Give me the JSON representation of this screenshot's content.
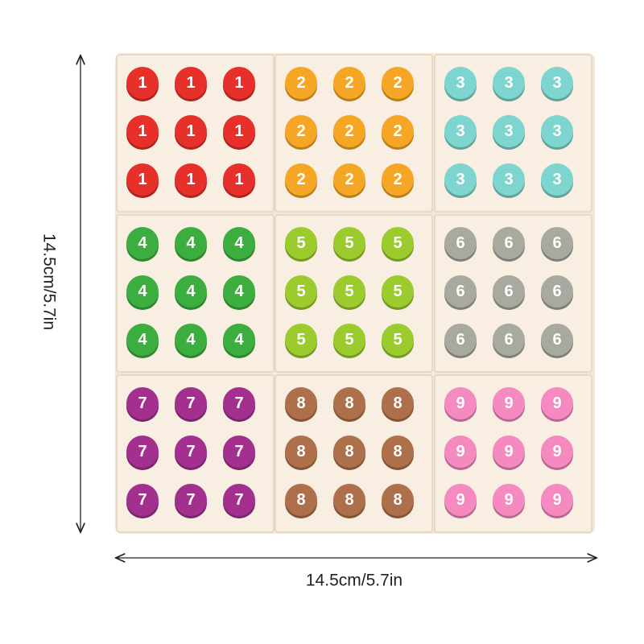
{
  "dimensions": {
    "height_label": "14.5cm/5.7in",
    "width_label": "14.5cm/5.7in"
  },
  "blocks": [
    {
      "digit": "1",
      "color": "#e8302a"
    },
    {
      "digit": "2",
      "color": "#f6a625"
    },
    {
      "digit": "3",
      "color": "#7ed5cf"
    },
    {
      "digit": "4",
      "color": "#3cae3f"
    },
    {
      "digit": "5",
      "color": "#9bcb2d"
    },
    {
      "digit": "6",
      "color": "#a8aa9f"
    },
    {
      "digit": "7",
      "color": "#a3308f"
    },
    {
      "digit": "8",
      "color": "#ae704a"
    },
    {
      "digit": "9",
      "color": "#f48ac0"
    }
  ]
}
